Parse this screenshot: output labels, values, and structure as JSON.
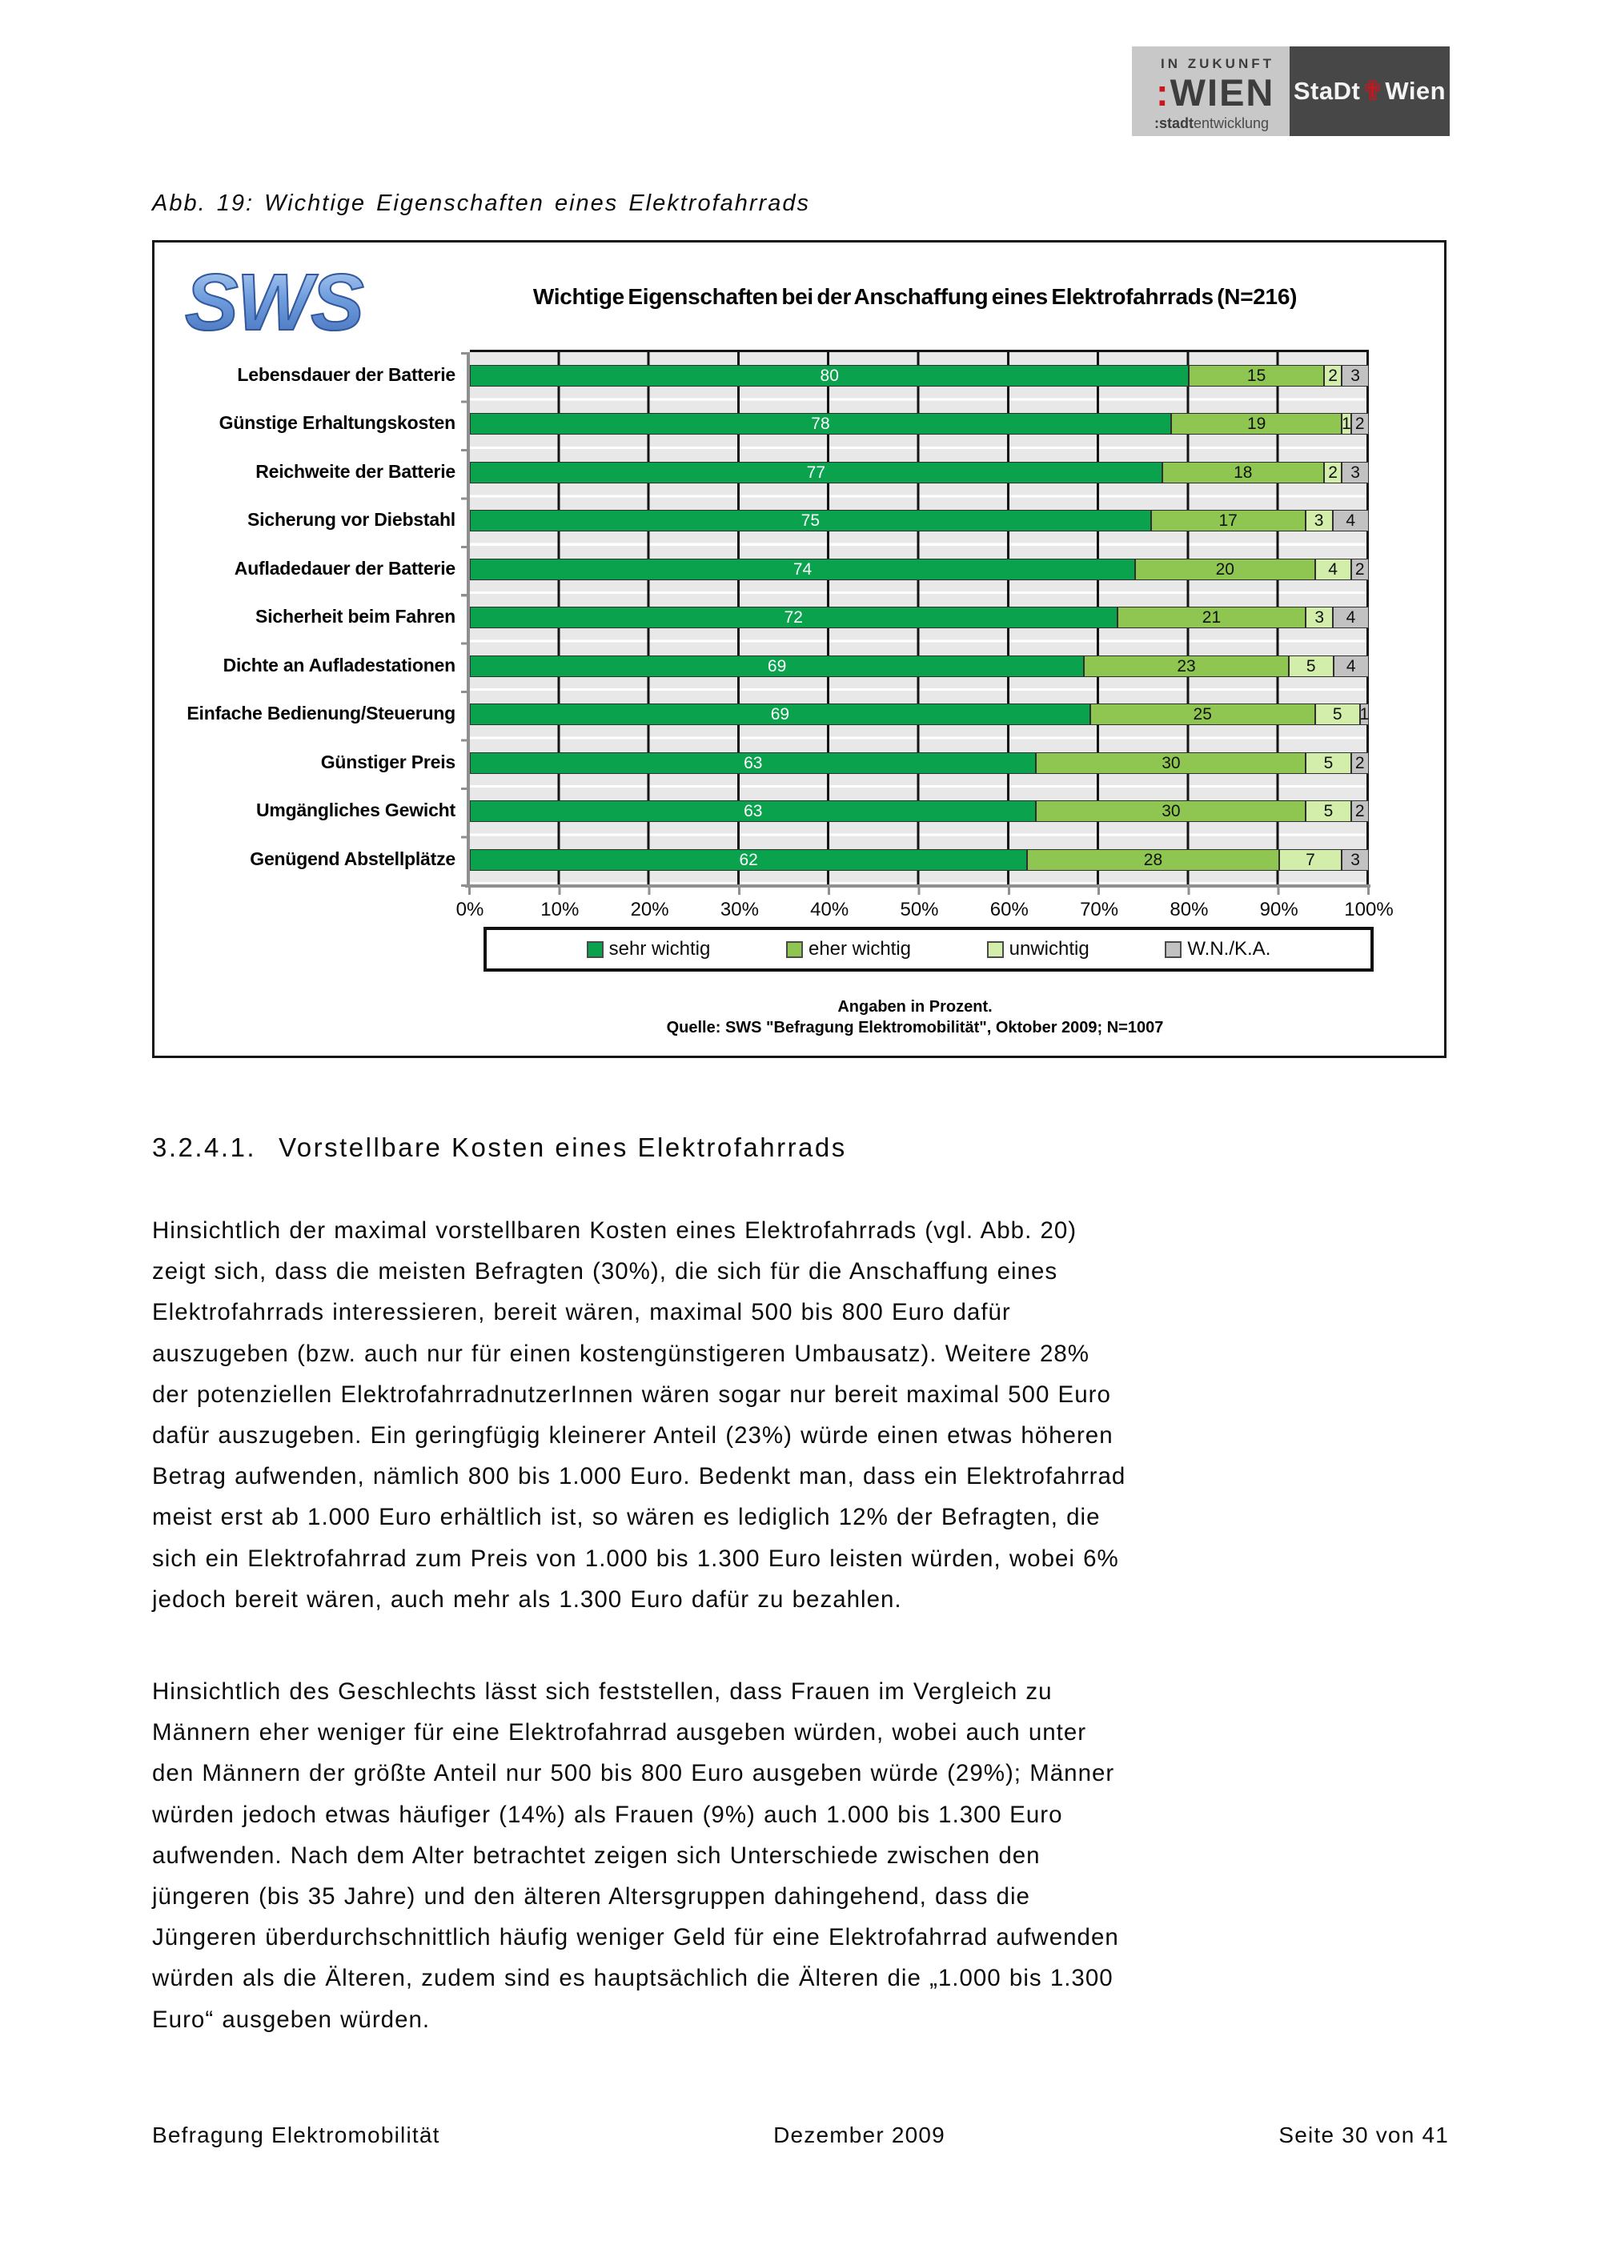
{
  "logos": {
    "zukunft_top": "IN ZUKUNFT",
    "zukunft_colon": ":",
    "zukunft_main": "WIEN",
    "zukunft_sub_colon": ":",
    "zukunft_sub_bold": "stadt",
    "zukunft_sub_rest": "entwicklung",
    "stadtwien_left": "StaDt",
    "stadtwien_cross": "✟",
    "stadtwien_right": "Wien"
  },
  "caption": "Abb. 19: Wichtige Eigenschaften eines Elektrofahrrads",
  "sws_logo": "SWS",
  "chart_data": {
    "type": "bar",
    "stacked": true,
    "orientation": "horizontal",
    "title": "Wichtige Eigenschaften bei der Anschaffung eines Elektrofahrrads (N=216)",
    "categories": [
      "Lebensdauer der Batterie",
      "Günstige Erhaltungskosten",
      "Reichweite der Batterie",
      "Sicherung vor Diebstahl",
      "Aufladedauer der Batterie",
      "Sicherheit beim Fahren",
      "Dichte an Aufladestationen",
      "Einfache Bedienung/Steuerung",
      "Günstiger Preis",
      "Umgängliches Gewicht",
      "Genügend Abstellplätze"
    ],
    "series": [
      {
        "name": "sehr wichtig",
        "color": "#0aa24d",
        "values": [
          80,
          78,
          77,
          75,
          74,
          72,
          69,
          69,
          63,
          63,
          62
        ]
      },
      {
        "name": "eher wichtig",
        "color": "#8fc652",
        "values": [
          15,
          19,
          18,
          17,
          20,
          21,
          23,
          25,
          30,
          30,
          28
        ]
      },
      {
        "name": "unwichtig",
        "color": "#d3edaa",
        "values": [
          2,
          1,
          2,
          3,
          4,
          3,
          5,
          5,
          5,
          5,
          7
        ]
      },
      {
        "name": "W.N./K.A.",
        "color": "#c2c2c2",
        "values": [
          3,
          2,
          3,
          4,
          2,
          4,
          4,
          1,
          2,
          2,
          3
        ]
      }
    ],
    "x_ticks": [
      "0%",
      "10%",
      "20%",
      "30%",
      "40%",
      "50%",
      "60%",
      "70%",
      "80%",
      "90%",
      "100%"
    ],
    "xlim": [
      0,
      100
    ],
    "grid": true,
    "legend_position": "bottom",
    "notes": [
      "Angaben in Prozent.",
      "Quelle: SWS \"Befragung Elektromobilität\", Oktober 2009; N=1007"
    ]
  },
  "section": {
    "number": "3.2.4.1.",
    "title": "Vorstellbare Kosten eines Elektrofahrrads"
  },
  "paragraph1": [
    "Hinsichtlich der maximal vorstellbaren Kosten eines Elektrofahrrads (vgl. Abb. 20)",
    "zeigt sich, dass die meisten Befragten (30%), die sich für die Anschaffung eines",
    "Elektrofahrrads interessieren, bereit wären, maximal 500 bis 800 Euro dafür",
    "auszugeben (bzw. auch nur für einen kostengünstigeren Umbausatz). Weitere 28%",
    "der potenziellen ElektrofahrradnutzerInnen wären sogar nur bereit maximal 500 Euro",
    "dafür auszugeben. Ein geringfügig kleinerer Anteil (23%) würde einen etwas höheren",
    "Betrag aufwenden, nämlich 800 bis 1.000 Euro. Bedenkt man, dass ein Elektrofahrrad",
    "meist erst ab 1.000 Euro erhältlich ist, so wären es lediglich 12% der Befragten, die",
    "sich ein Elektrofahrrad zum Preis von 1.000 bis 1.300 Euro leisten würden, wobei 6%",
    "jedoch bereit wären, auch mehr als 1.300 Euro dafür zu bezahlen."
  ],
  "paragraph2": [
    "Hinsichtlich des Geschlechts lässt sich feststellen, dass Frauen im Vergleich zu",
    "Männern eher weniger für eine Elektrofahrrad ausgeben würden, wobei auch unter",
    "den Männern der größte Anteil nur 500 bis 800 Euro ausgeben würde (29%); Männer",
    "würden jedoch etwas häufiger (14%) als Frauen (9%) auch 1.000 bis 1.300 Euro",
    "aufwenden. Nach dem Alter betrachtet zeigen sich Unterschiede zwischen den",
    "jüngeren (bis 35 Jahre) und den älteren Altersgruppen dahingehend, dass die",
    "Jüngeren überdurchschnittlich häufig weniger Geld für eine Elektrofahrrad aufwenden",
    "würden als die Älteren, zudem sind es hauptsächlich die Älteren die „1.000 bis 1.300",
    "Euro“ ausgeben würden."
  ],
  "footer": {
    "left": "Befragung Elektromobilität",
    "center": "Dezember 2009",
    "right": "Seite 30 von 41"
  }
}
